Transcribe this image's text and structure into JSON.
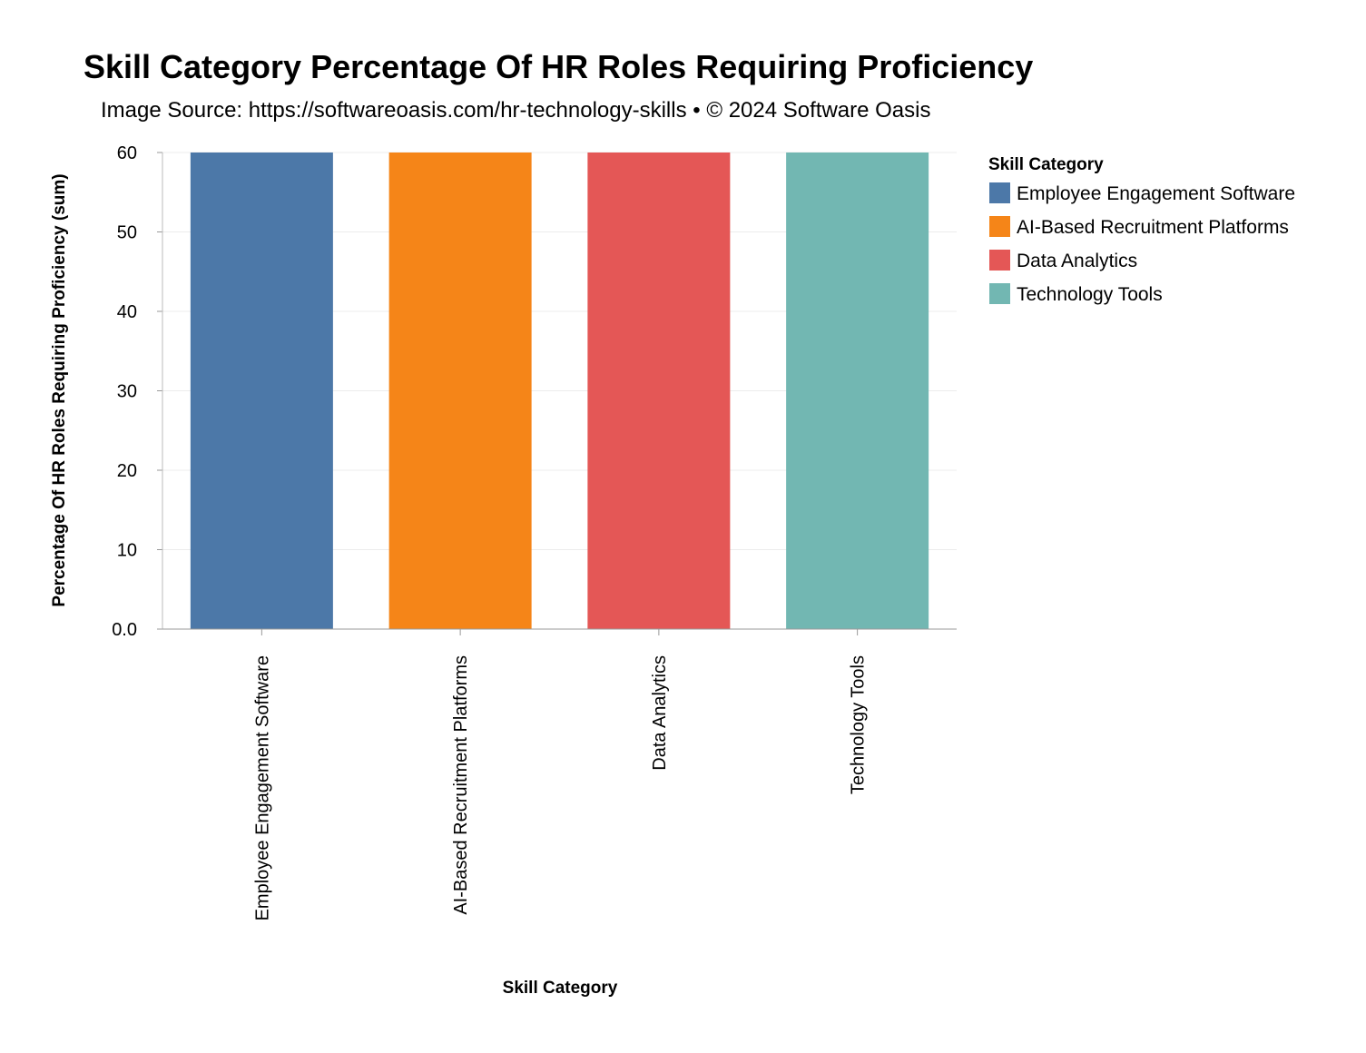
{
  "chart_data": {
    "type": "bar",
    "title": "Skill Category Percentage Of HR Roles Requiring Proficiency",
    "subtitle": "Image Source: https://softwareoasis.com/hr-technology-skills • © 2024 Software Oasis",
    "xlabel": "Skill Category",
    "ylabel": "Percentage Of HR Roles Requiring Proficiency (sum)",
    "categories": [
      "Employee Engagement Software",
      "AI-Based Recruitment Platforms",
      "Data Analytics",
      "Technology Tools"
    ],
    "values": [
      60,
      60,
      60,
      60
    ],
    "colors": [
      "#4c78a8",
      "#f58518",
      "#e45756",
      "#72b7b2"
    ],
    "ylim": [
      0,
      60
    ],
    "yticks": [
      "0.0",
      "10",
      "20",
      "30",
      "40",
      "50",
      "60"
    ],
    "grid": true,
    "legend": {
      "title": "Skill Category",
      "placement": "right",
      "entries": [
        "Employee Engagement Software",
        "AI-Based Recruitment Platforms",
        "Data Analytics",
        "Technology Tools"
      ]
    }
  }
}
